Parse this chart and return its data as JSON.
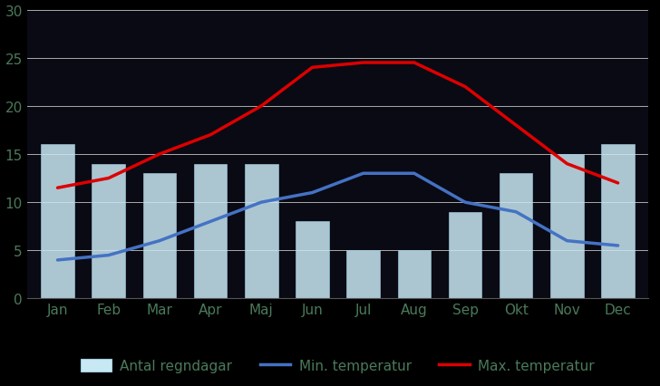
{
  "months": [
    "Jan",
    "Feb",
    "Mar",
    "Apr",
    "Maj",
    "Jun",
    "Jul",
    "Aug",
    "Sep",
    "Okt",
    "Nov",
    "Dec"
  ],
  "rain_days": [
    16,
    14,
    13,
    14,
    14,
    8,
    5,
    5,
    9,
    13,
    15,
    16
  ],
  "min_temp": [
    4,
    4.5,
    6,
    8,
    10,
    11,
    13,
    13,
    10,
    9,
    6,
    5.5
  ],
  "max_temp": [
    11.5,
    12.5,
    15,
    17,
    20,
    24,
    24.5,
    24.5,
    22,
    18,
    14,
    12
  ],
  "bar_color": "#c8e8f4",
  "bar_edge_color": "#a0cce0",
  "min_temp_color": "#4472c4",
  "max_temp_color": "#dd0000",
  "background_color": "#1a1a2e",
  "plot_bg_color": "#0d0d1a",
  "grid_color": "#ffffff",
  "tick_color": "#5a8a6a",
  "ylim": [
    0,
    30
  ],
  "yticks": [
    0,
    5,
    10,
    15,
    20,
    25,
    30
  ],
  "legend_labels": [
    "Antal regndagar",
    "Min. temperatur",
    "Max. temperatur"
  ],
  "bar_width": 0.65
}
